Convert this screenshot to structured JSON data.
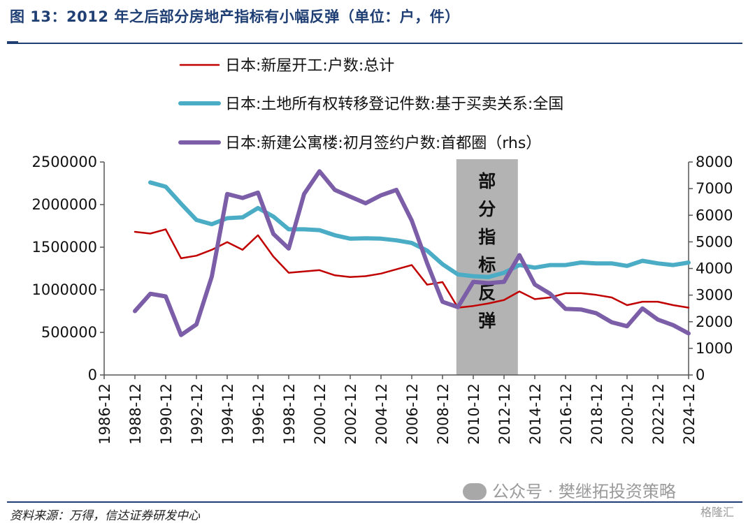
{
  "header": {
    "title": "图 13：2012 年之后部分房地产指标有小幅反弹（单位：户，件）"
  },
  "footer": {
    "source": "资料来源：万得，信达证券研发中心",
    "watermark": "公众号 · 樊继拓投资策略",
    "corner_logo": "格隆汇"
  },
  "chart_data": {
    "type": "line",
    "x_tick_labels": [
      "1986-12",
      "1988-12",
      "1990-12",
      "1992-12",
      "1994-12",
      "1996-12",
      "1998-12",
      "2000-12",
      "2002-12",
      "2004-12",
      "2006-12",
      "2008-12",
      "2010-12",
      "2012-12",
      "2014-12",
      "2016-12",
      "2018-12",
      "2020-12",
      "2022-12",
      "2024-12"
    ],
    "xlim": [
      1986,
      2024
    ],
    "y_left": {
      "ticks": [
        "0",
        "500000",
        "1000000",
        "1500000",
        "2000000",
        "2500000"
      ],
      "lim": [
        0,
        2500000
      ]
    },
    "y_right": {
      "ticks": [
        "0",
        "1000",
        "2000",
        "3000",
        "4000",
        "5000",
        "6000",
        "7000",
        "8000"
      ],
      "lim": [
        0,
        8000
      ]
    },
    "series": [
      {
        "name": "日本:新屋开工:户数:总计",
        "axis": "left",
        "color": "#c00000",
        "line_width": 2.5,
        "x": [
          1988,
          1989,
          1990,
          1991,
          1992,
          1993,
          1994,
          1995,
          1996,
          1997,
          1998,
          1999,
          2000,
          2001,
          2002,
          2003,
          2004,
          2005,
          2006,
          2007,
          2008,
          2009,
          2010,
          2011,
          2012,
          2013,
          2014,
          2015,
          2016,
          2017,
          2018,
          2019,
          2020,
          2021,
          2022,
          2023,
          2024
        ],
        "values": [
          1680000,
          1660000,
          1710000,
          1370000,
          1400000,
          1470000,
          1560000,
          1470000,
          1640000,
          1390000,
          1200000,
          1215000,
          1230000,
          1170000,
          1150000,
          1160000,
          1190000,
          1240000,
          1290000,
          1060000,
          1090000,
          790000,
          810000,
          840000,
          880000,
          980000,
          890000,
          910000,
          960000,
          960000,
          940000,
          910000,
          820000,
          860000,
          860000,
          820000,
          790000
        ]
      },
      {
        "name": "日本:土地所有权转移登记件数:基于买卖关系:全国",
        "axis": "left",
        "color": "#4bacc6",
        "line_width": 6,
        "x": [
          1989,
          1990,
          1991,
          1992,
          1993,
          1994,
          1995,
          1996,
          1997,
          1998,
          1999,
          2000,
          2001,
          2002,
          2003,
          2004,
          2005,
          2006,
          2007,
          2008,
          2009,
          2010,
          2011,
          2012,
          2013,
          2014,
          2015,
          2016,
          2017,
          2018,
          2019,
          2020,
          2021,
          2022,
          2023,
          2024
        ],
        "values": [
          2260000,
          2210000,
          2010000,
          1820000,
          1770000,
          1840000,
          1850000,
          1960000,
          1860000,
          1710000,
          1710000,
          1700000,
          1640000,
          1600000,
          1605000,
          1600000,
          1580000,
          1550000,
          1460000,
          1300000,
          1180000,
          1160000,
          1150000,
          1200000,
          1290000,
          1260000,
          1290000,
          1290000,
          1320000,
          1310000,
          1310000,
          1280000,
          1340000,
          1310000,
          1290000,
          1320000
        ]
      },
      {
        "name": "日本:新建公寓楼:初月签约户数:首都圈（rhs）",
        "axis": "right",
        "color": "#7b5ea7",
        "line_width": 6,
        "x": [
          1988,
          1989,
          1990,
          1991,
          1992,
          1993,
          1994,
          1995,
          1996,
          1997,
          1998,
          1999,
          2000,
          2001,
          2002,
          2003,
          2004,
          2005,
          2006,
          2007,
          2008,
          2009,
          2010,
          2011,
          2012,
          2013,
          2014,
          2015,
          2016,
          2017,
          2018,
          2019,
          2020,
          2021,
          2022,
          2023,
          2024
        ],
        "values": [
          2400,
          3050,
          2950,
          1500,
          1900,
          3700,
          6800,
          6650,
          6850,
          5300,
          4750,
          6800,
          7650,
          6950,
          6700,
          6450,
          6750,
          6950,
          5800,
          4200,
          2750,
          2550,
          3500,
          3450,
          3500,
          4500,
          3400,
          3050,
          2480,
          2460,
          2320,
          1980,
          1830,
          2500,
          2080,
          1870,
          1560
        ]
      }
    ],
    "annotation": {
      "label": "部分指标反弹",
      "x_start": 2008.9,
      "x_end": 2012.9,
      "color": "#b3b3b3"
    }
  }
}
